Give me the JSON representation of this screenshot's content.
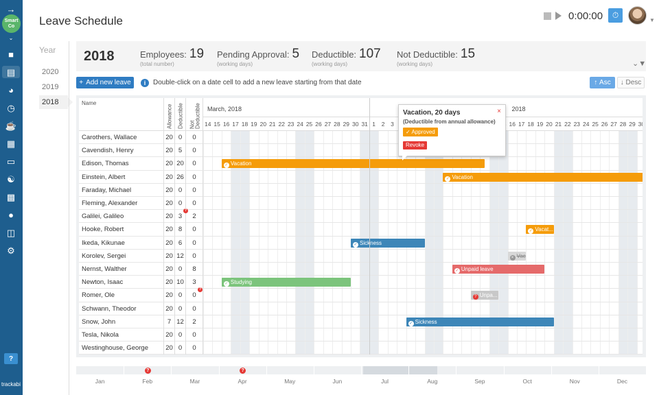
{
  "app": {
    "page_title": "Leave Schedule",
    "brand": "trackabi",
    "logo_text": [
      "Smart",
      "Co"
    ],
    "timer": "0:00:00"
  },
  "years": {
    "label": "Year",
    "items": [
      "2020",
      "2019",
      "2018"
    ],
    "active": "2018"
  },
  "stats": {
    "year": "2018",
    "employees": {
      "label": "Employees:",
      "value": "19",
      "sub": "(total number)"
    },
    "pending": {
      "label": "Pending Approval:",
      "value": "5",
      "sub": "(working days)"
    },
    "deductible": {
      "label": "Deductible:",
      "value": "107",
      "sub": "(working days)"
    },
    "not_deductible": {
      "label": "Not Deductible:",
      "value": "15",
      "sub": "(working days)"
    }
  },
  "toolbar": {
    "add_label": "Add new leave",
    "info_text": "Double-click on a date cell to add a new leave starting from that date",
    "asc_label": "Asc",
    "desc_label": "Desc"
  },
  "grid": {
    "name_header": "Name",
    "col_headers": [
      "Allowance",
      "Deductible",
      "Not Deductible"
    ],
    "months": [
      {
        "label": "March, 2018",
        "start_day": 0
      },
      {
        "label": "2018",
        "start_day": 33
      }
    ],
    "days": [
      "14",
      "15",
      "16",
      "17",
      "18",
      "19",
      "20",
      "21",
      "22",
      "23",
      "24",
      "25",
      "26",
      "27",
      "28",
      "29",
      "30",
      "31",
      "1",
      "2",
      "3",
      "4",
      "5",
      "6",
      "7",
      "8",
      "9",
      "10",
      "11",
      "12",
      "13",
      "14",
      "15",
      "16",
      "17",
      "18",
      "19",
      "20",
      "21",
      "22",
      "23",
      "24",
      "25",
      "26",
      "27",
      "28",
      "29",
      "30"
    ],
    "weekend_starts": [
      3,
      10,
      17,
      24,
      31,
      38,
      45
    ],
    "rows": [
      {
        "name": "Carothers, Wallace",
        "allowance": "20",
        "deductible": "0",
        "not_deductible": "0"
      },
      {
        "name": "Cavendish, Henry",
        "allowance": "20",
        "deductible": "5",
        "not_deductible": "0"
      },
      {
        "name": "Edison, Thomas",
        "allowance": "20",
        "deductible": "20",
        "not_deductible": "0"
      },
      {
        "name": "Einstein, Albert",
        "allowance": "20",
        "deductible": "26",
        "not_deductible": "0"
      },
      {
        "name": "Faraday, Michael",
        "allowance": "20",
        "deductible": "0",
        "not_deductible": "0"
      },
      {
        "name": "Fleming, Alexander",
        "allowance": "20",
        "deductible": "0",
        "not_deductible": "0"
      },
      {
        "name": "Galilei, Galileo",
        "allowance": "20",
        "deductible": "3",
        "not_deductible": "2",
        "flag_deductible": true
      },
      {
        "name": "Hooke, Robert",
        "allowance": "20",
        "deductible": "8",
        "not_deductible": "0"
      },
      {
        "name": "Ikeda, Kikunae",
        "allowance": "20",
        "deductible": "6",
        "not_deductible": "0"
      },
      {
        "name": "Korolev, Sergei",
        "allowance": "20",
        "deductible": "12",
        "not_deductible": "0"
      },
      {
        "name": "Nernst, Walther",
        "allowance": "20",
        "deductible": "0",
        "not_deductible": "8"
      },
      {
        "name": "Newton, Isaac",
        "allowance": "20",
        "deductible": "10",
        "not_deductible": "3"
      },
      {
        "name": "Romer, Ole",
        "allowance": "20",
        "deductible": "0",
        "not_deductible": "0",
        "flag_not_deductible": true
      },
      {
        "name": "Schwann, Theodor",
        "allowance": "20",
        "deductible": "0",
        "not_deductible": "0"
      },
      {
        "name": "Snow, John",
        "allowance": "7",
        "deductible": "12",
        "not_deductible": "2"
      },
      {
        "name": "Tesla, Nikola",
        "allowance": "20",
        "deductible": "0",
        "not_deductible": "0"
      },
      {
        "name": "Westinghouse, George",
        "allowance": "20",
        "deductible": "0",
        "not_deductible": "0"
      }
    ],
    "leaves": [
      {
        "row": 2,
        "start": 2,
        "span": 28.5,
        "type": "vacation",
        "label": "Vacation",
        "icon": "check-icon"
      },
      {
        "row": 3,
        "start": 26,
        "span": 22,
        "type": "vacation",
        "label": "Vacation",
        "icon": "check-icon"
      },
      {
        "row": 7,
        "start": 35,
        "span": 3,
        "type": "vacation",
        "label": "Vacat...",
        "icon": "check-icon"
      },
      {
        "row": 8,
        "start": 16,
        "span": 8,
        "type": "sickness",
        "label": "Sickness",
        "icon": "check-icon"
      },
      {
        "row": 9,
        "start": 33,
        "span": 2,
        "type": "revoked",
        "label": "Vac",
        "icon": "cancel-icon"
      },
      {
        "row": 10,
        "start": 27,
        "span": 10,
        "type": "unpaid",
        "label": "Unpaid leave",
        "icon": "check-icon"
      },
      {
        "row": 11,
        "start": 2,
        "span": 14,
        "type": "studying",
        "label": "Studying",
        "icon": "check-icon"
      },
      {
        "row": 12,
        "start": 29,
        "span": 3,
        "type": "pending",
        "label": "Unpa...",
        "icon": "question-icon"
      },
      {
        "row": 14,
        "start": 22,
        "span": 16,
        "type": "sickness",
        "label": "Sickness",
        "icon": "check-icon"
      }
    ]
  },
  "popup": {
    "title": "Vacation, 20 days",
    "subtitle": "(Deductible from annual allowance)",
    "status": "Approved",
    "revoke_label": "Revoke"
  },
  "timeline": {
    "months": [
      "Jan",
      "Feb",
      "Mar",
      "Apr",
      "May",
      "Jun",
      "Jul",
      "Aug",
      "Sep",
      "Oct",
      "Nov",
      "Dec"
    ],
    "flagged": [
      "Feb",
      "Apr"
    ]
  },
  "colors": {
    "sidebar": "#1e5e8e",
    "vacation": "#f59c0a",
    "sickness": "#3d86b8",
    "unpaid": "#e56a6a",
    "studying": "#7cc47c",
    "accent": "#2f7cc2"
  }
}
